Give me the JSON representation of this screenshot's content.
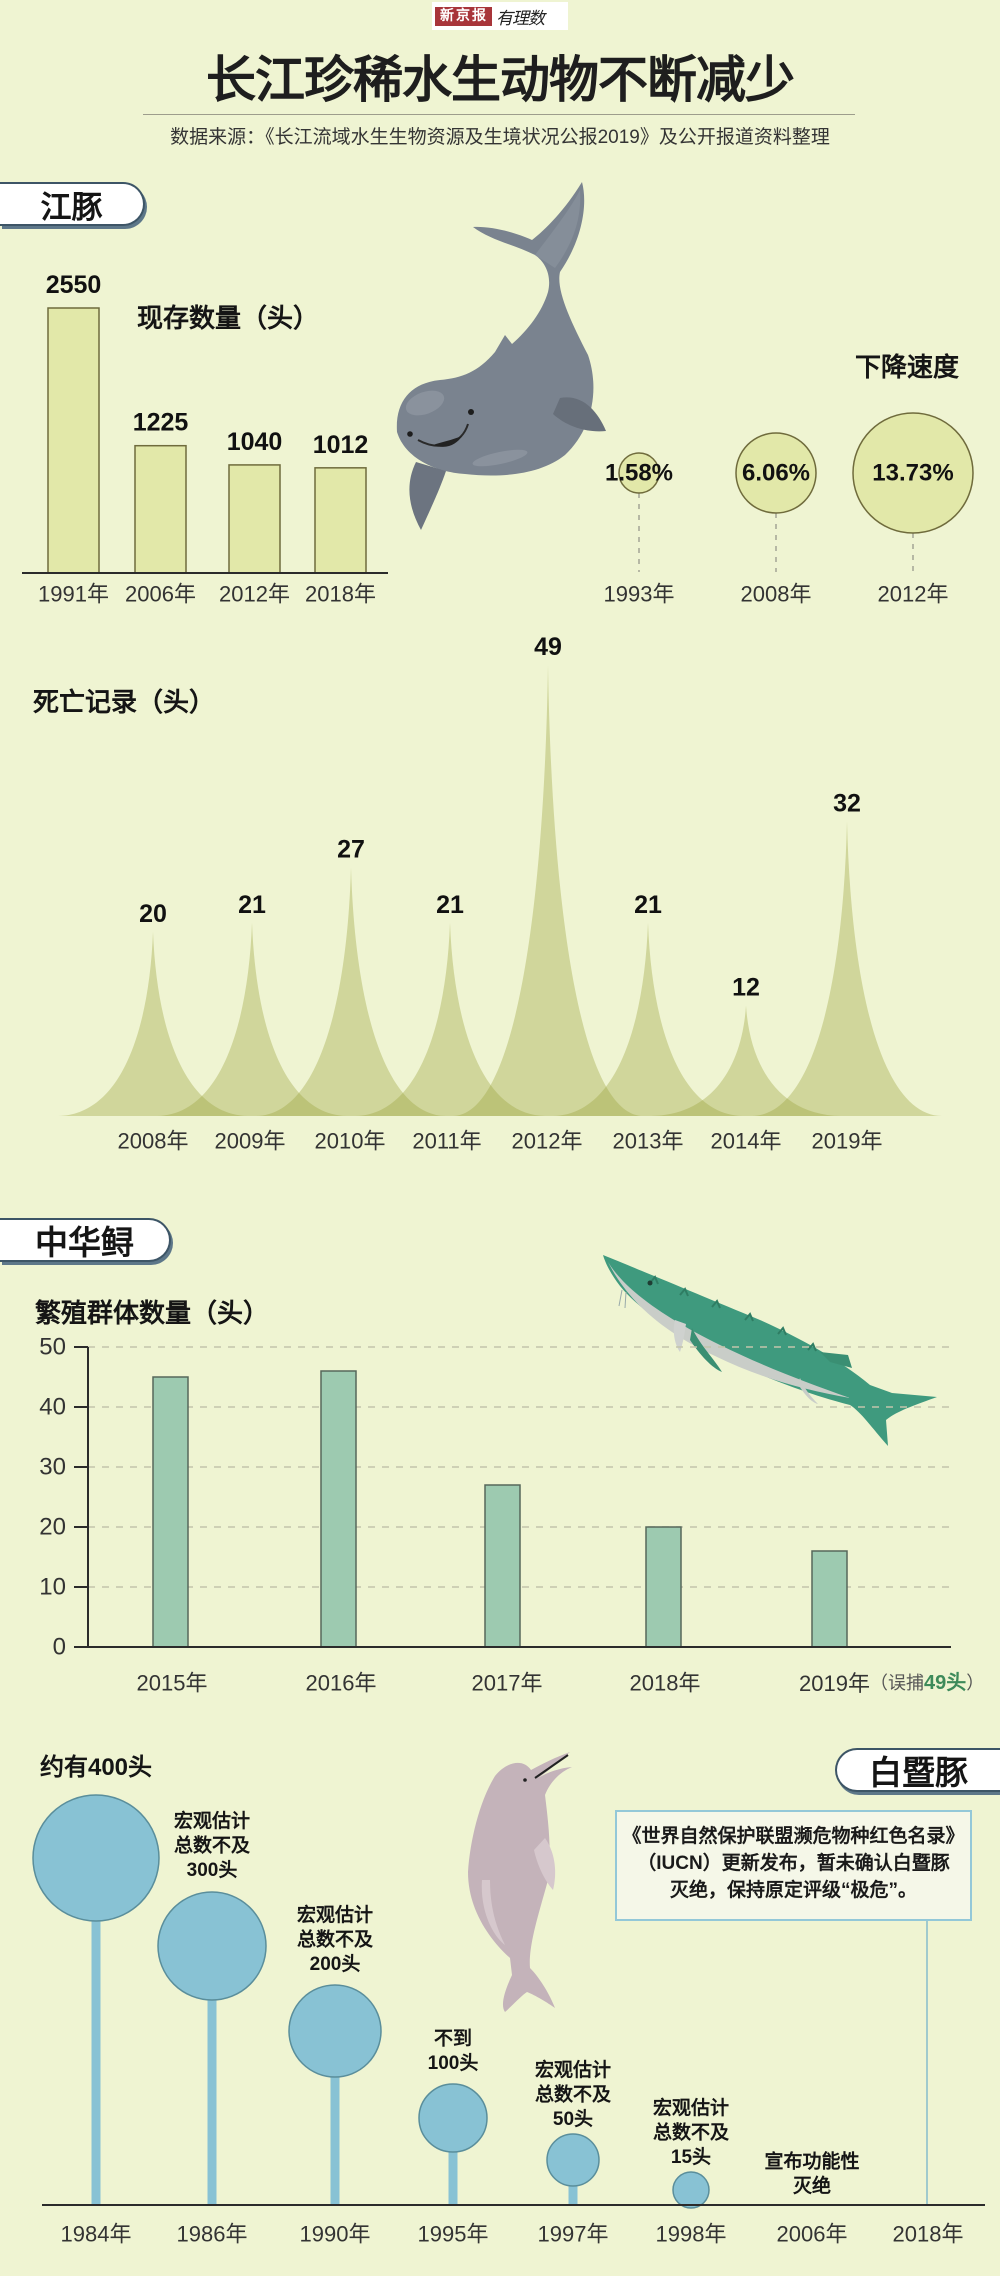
{
  "header": {
    "logo": {
      "brand": "新京报",
      "column": "有理数"
    },
    "title": "长江珍稀水生动物不断减少",
    "source": "数据来源：《长江流域水生生物资源及生境状况公报2019》及公开报道资料整理"
  },
  "sections": {
    "finless_porpoise": {
      "tab": "江豚",
      "population_title": "现存数量（头）",
      "decline_title": "下降速度",
      "deaths_title": "死亡记录（头）",
      "illustration": "finless-porpoise-icon"
    },
    "sturgeon": {
      "tab": "中华鲟",
      "chart_title": "繁殖群体数量（头）",
      "illustration": "chinese-sturgeon-icon"
    },
    "baiji": {
      "tab": "白暨豚",
      "illustration": "baiji-dolphin-icon",
      "notice_lines": [
        "《世界自然保护联盟濒危物种红色名录》",
        "（IUCN）更新发布，暂未确认白暨豚",
        "灭绝，保持原定评级“极危”。"
      ]
    }
  },
  "colors": {
    "background": "#eff4d2",
    "axis": "#2b2b2b",
    "porpoise_fill": "#e2e8a9",
    "porpoise_stroke": "#6f6b3c",
    "death_spike": "#98a03a",
    "sturgeon_bar": "#9dcab0",
    "sturgeon_stroke": "#56675a",
    "sturgeon_highlight": "#3d8a5a",
    "grid": "#c3c4ab",
    "baiji_fill": "#88c2d4",
    "baiji_stroke": "#5a8e9b",
    "tab_border": "#3d5566",
    "notice_border": "#93c8d8",
    "brand_red": "#a8353a"
  },
  "chart_data": [
    {
      "id": "porpoise_population",
      "type": "bar",
      "title": "现存数量（头）",
      "categories": [
        "1991年",
        "2006年",
        "2012年",
        "2018年"
      ],
      "values": [
        2550,
        1225,
        1040,
        1012
      ],
      "xlabel": "",
      "ylabel": "头",
      "grid": false,
      "legend": null
    },
    {
      "id": "porpoise_decline_rate",
      "type": "scatter",
      "subtype": "bubble",
      "title": "下降速度",
      "categories": [
        "1993年",
        "2008年",
        "2012年"
      ],
      "values": [
        1.58,
        6.06,
        13.73
      ],
      "value_labels": [
        "1.58%",
        "6.06%",
        "13.73%"
      ],
      "unit": "%"
    },
    {
      "id": "porpoise_deaths",
      "type": "area",
      "title": "死亡记录（头）",
      "categories": [
        "2008年",
        "2009年",
        "2010年",
        "2011年",
        "2012年",
        "2013年",
        "2014年",
        "2019年"
      ],
      "values": [
        20,
        21,
        27,
        21,
        49,
        21,
        12,
        32
      ],
      "grid": false
    },
    {
      "id": "sturgeon_breeding_population",
      "type": "bar",
      "title": "繁殖群体数量（头）",
      "categories": [
        "2015年",
        "2016年",
        "2017年",
        "2018年",
        "2019年"
      ],
      "values": [
        45,
        46,
        27,
        20,
        16
      ],
      "ylim": [
        0,
        50
      ],
      "yticks": [
        "0",
        "10",
        "20",
        "30",
        "40",
        "50"
      ],
      "grid": true,
      "annotation": {
        "category": "2019年",
        "prefix": "（误捕",
        "highlight": "49头",
        "suffix": "）"
      }
    },
    {
      "id": "baiji_population_timeline",
      "type": "scatter",
      "subtype": "bubble-timeline",
      "categories": [
        "1984年",
        "1986年",
        "1990年",
        "1995年",
        "1997年",
        "1998年",
        "2006年",
        "2018年"
      ],
      "values": [
        400,
        300,
        200,
        100,
        50,
        15,
        null,
        null
      ],
      "labels": [
        [
          "约有400头"
        ],
        [
          "宏观估计",
          "总数不及",
          "300头"
        ],
        [
          "宏观估计",
          "总数不及",
          "200头"
        ],
        [
          "不到",
          "100头"
        ],
        [
          "宏观估计",
          "总数不及",
          "50头"
        ],
        [
          "宏观估计",
          "总数不及",
          "15头"
        ],
        [
          "宣布功能性",
          "灭绝"
        ],
        []
      ]
    }
  ]
}
